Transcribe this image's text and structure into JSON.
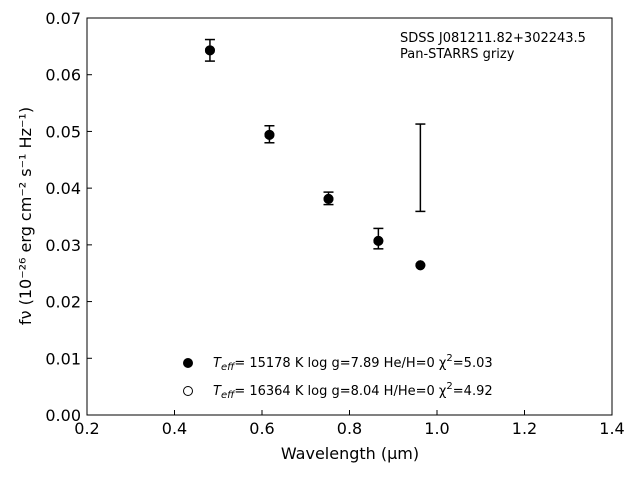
{
  "chart_data": {
    "type": "scatter",
    "title": "",
    "xlabel": "Wavelength (μm)",
    "ylabel": "fν (10⁻²⁶ erg cm⁻² s⁻¹ Hz⁻¹)",
    "xlim": [
      0.2,
      1.4
    ],
    "ylim": [
      0.0,
      0.07
    ],
    "xticks": [
      0.2,
      0.4,
      0.6,
      0.8,
      1.0,
      1.2,
      1.4
    ],
    "xtick_labels": [
      "0.2",
      "0.4",
      "0.6",
      "0.8",
      "1.0",
      "1.2",
      "1.4"
    ],
    "yticks": [
      0.0,
      0.01,
      0.02,
      0.03,
      0.04,
      0.05,
      0.06,
      0.07
    ],
    "ytick_labels": [
      "0.00",
      "0.01",
      "0.02",
      "0.03",
      "0.04",
      "0.05",
      "0.06",
      "0.07"
    ],
    "grid": false,
    "annotation": [
      "SDSS J081211.82+302243.5",
      "Pan-STARRS grizy"
    ],
    "observed": {
      "x": [
        0.481,
        0.617,
        0.752,
        0.866,
        0.962
      ],
      "y": [
        0.0643,
        0.0495,
        0.0382,
        0.0311,
        0.0436
      ],
      "yerr": [
        0.0019,
        0.0015,
        0.0011,
        0.0018,
        0.0077
      ]
    },
    "series": [
      {
        "marker": "filled",
        "x": [
          0.481,
          0.617,
          0.752,
          0.866,
          0.962
        ],
        "y": [
          0.0643,
          0.0494,
          0.0381,
          0.0307,
          0.0264
        ]
      },
      {
        "marker": "open",
        "x": [
          0.481,
          0.617,
          0.752,
          0.866,
          0.962
        ],
        "y": [
          0.0643,
          0.0494,
          0.0381,
          0.0307,
          0.0264
        ]
      }
    ],
    "legend": {
      "placement": "lower-center",
      "entries": [
        {
          "marker": "filled",
          "teff_label": "T",
          "teff_sub": "eff",
          "text": "= 15178 K  log g=7.89  He/H=0  χ",
          "chi_sup": "2",
          "chi_value": "=5.03"
        },
        {
          "marker": "open",
          "teff_label": "T",
          "teff_sub": "eff",
          "text": "= 16364 K  log g=8.04  H/He=0  χ",
          "chi_sup": "2",
          "chi_value": "=4.92"
        }
      ]
    }
  }
}
